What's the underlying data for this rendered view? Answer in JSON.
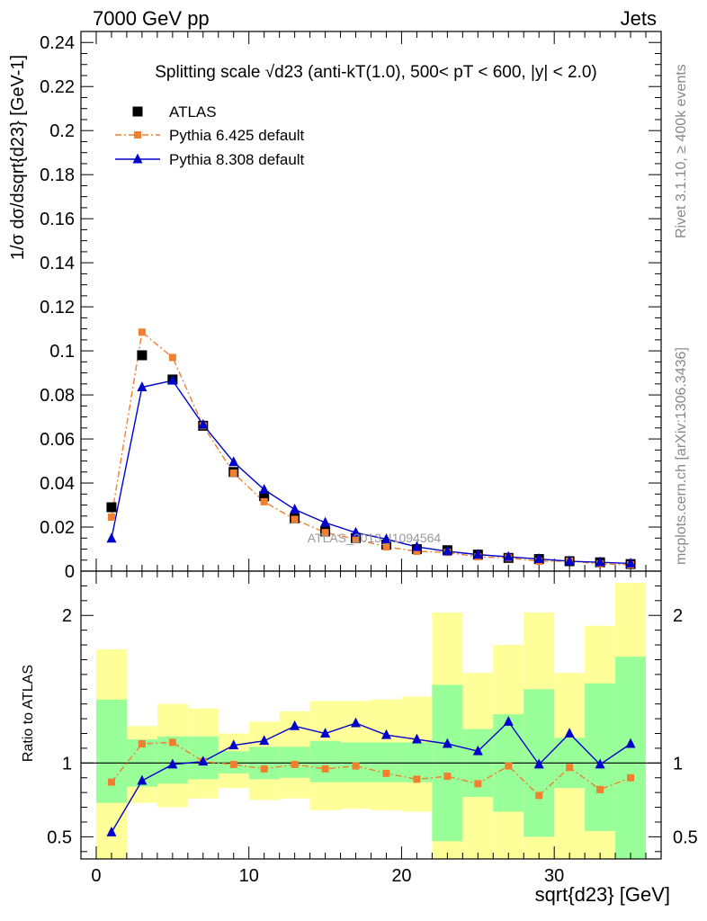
{
  "header": {
    "energy_label": "7000 GeV pp",
    "category_label": "Jets"
  },
  "side": {
    "rivet_label": "Rivet 3.1.10, ≥ 400k events",
    "mcplots_label": "mcplots.cern.ch [arXiv:1306.3436]"
  },
  "chart_data": {
    "type": "scatter",
    "title": "Splitting scale √d23 (anti-kT(1.0), 500< pT < 600, |y| < 2.0)",
    "xlabel": "sqrt{d23} [GeV]",
    "ylabel": "1/σ dσ/dsqrt{d23} [GeV-1]",
    "ratio_ylabel": "Ratio to ATLAS",
    "watermark": "ATLAS_2013_I1094564",
    "legend_position": "top-left",
    "xlim": [
      -1,
      37
    ],
    "ylim": [
      0,
      0.245
    ],
    "ratio_ylim": [
      0.35,
      2.3
    ],
    "x_ticks": [
      0,
      10,
      20,
      30
    ],
    "y_ticks": [
      0,
      0.02,
      0.04,
      0.06,
      0.08,
      0.1,
      0.12,
      0.14,
      0.16,
      0.18,
      0.2,
      0.22,
      0.24
    ],
    "y_tick_labels": [
      "0",
      "0.02",
      "0.04",
      "0.06",
      "0.08",
      "0.1",
      "0.12",
      "0.14",
      "0.16",
      "0.18",
      "0.2",
      "0.22",
      "0.24"
    ],
    "ratio_ticks": [
      0.5,
      1,
      2
    ],
    "ratio_tick_labels": [
      "0.5",
      "1",
      "2"
    ],
    "bin_edges": [
      0,
      2,
      4,
      6,
      8,
      10,
      12,
      14,
      16,
      18,
      20,
      22,
      24,
      26,
      28,
      30,
      32,
      34,
      36
    ],
    "x": [
      1,
      3,
      5,
      7,
      9,
      11,
      13,
      15,
      17,
      19,
      21,
      23,
      25,
      27,
      29,
      31,
      33,
      35
    ],
    "series": [
      {
        "name": "ATLAS",
        "color": "#000000",
        "marker": "square",
        "values": [
          0.029,
          0.098,
          0.087,
          0.066,
          0.045,
          0.034,
          0.024,
          0.018,
          0.015,
          0.012,
          0.01,
          0.0095,
          0.0075,
          0.006,
          0.0055,
          0.0045,
          0.004,
          0.0032
        ]
      },
      {
        "name": "Pythia 6.425 default",
        "color": "#f08030",
        "marker": "square-small",
        "line": "dash-dot",
        "values": [
          0.0245,
          0.1085,
          0.097,
          0.066,
          0.0445,
          0.0315,
          0.0235,
          0.0175,
          0.0145,
          0.011,
          0.009,
          0.0085,
          0.0065,
          0.006,
          0.0045,
          0.0045,
          0.0033,
          0.0029
        ],
        "ratio": [
          0.87,
          1.13,
          1.14,
          1.01,
          0.99,
          0.96,
          0.99,
          0.96,
          0.98,
          0.93,
          0.89,
          0.91,
          0.86,
          0.98,
          0.78,
          0.97,
          0.82,
          0.9
        ]
      },
      {
        "name": "Pythia 8.308 default",
        "color": "#0000cc",
        "marker": "triangle",
        "line": "solid",
        "values": [
          0.0148,
          0.0835,
          0.0865,
          0.0665,
          0.0495,
          0.037,
          0.028,
          0.022,
          0.0175,
          0.0145,
          0.011,
          0.009,
          0.0075,
          0.0065,
          0.0055,
          0.0045,
          0.004,
          0.0035
        ],
        "ratio": [
          0.53,
          0.88,
          0.99,
          1.01,
          1.12,
          1.15,
          1.25,
          1.2,
          1.27,
          1.19,
          1.16,
          1.13,
          1.08,
          1.28,
          0.99,
          1.2,
          0.99,
          1.13
        ]
      }
    ],
    "ratio_bands": {
      "inner_color": "#99ff99",
      "outer_color": "#ffff99",
      "inner": [
        [
          0.73,
          1.43
        ],
        [
          0.84,
          1.16
        ],
        [
          0.86,
          1.18
        ],
        [
          0.89,
          1.18
        ],
        [
          0.93,
          1.08
        ],
        [
          0.89,
          1.11
        ],
        [
          0.9,
          1.11
        ],
        [
          0.87,
          1.15
        ],
        [
          0.87,
          1.14
        ],
        [
          0.87,
          1.14
        ],
        [
          0.87,
          1.14
        ],
        [
          0.47,
          1.53
        ],
        [
          0.77,
          1.23
        ],
        [
          0.67,
          1.33
        ],
        [
          0.5,
          1.5
        ],
        [
          0.83,
          1.17
        ],
        [
          0.54,
          1.54
        ],
        [
          0.35,
          1.72
        ]
      ],
      "outer": [
        [
          0.35,
          1.77
        ],
        [
          0.73,
          1.25
        ],
        [
          0.7,
          1.4
        ],
        [
          0.76,
          1.37
        ],
        [
          0.83,
          1.2
        ],
        [
          0.75,
          1.28
        ],
        [
          0.76,
          1.35
        ],
        [
          0.68,
          1.42
        ],
        [
          0.69,
          1.42
        ],
        [
          0.68,
          1.43
        ],
        [
          0.67,
          1.45
        ],
        [
          0.35,
          2.02
        ],
        [
          0.35,
          1.61
        ],
        [
          0.35,
          1.8
        ],
        [
          0.35,
          2.02
        ],
        [
          0.35,
          1.61
        ],
        [
          0.35,
          1.93
        ],
        [
          0.35,
          2.22
        ]
      ]
    }
  }
}
